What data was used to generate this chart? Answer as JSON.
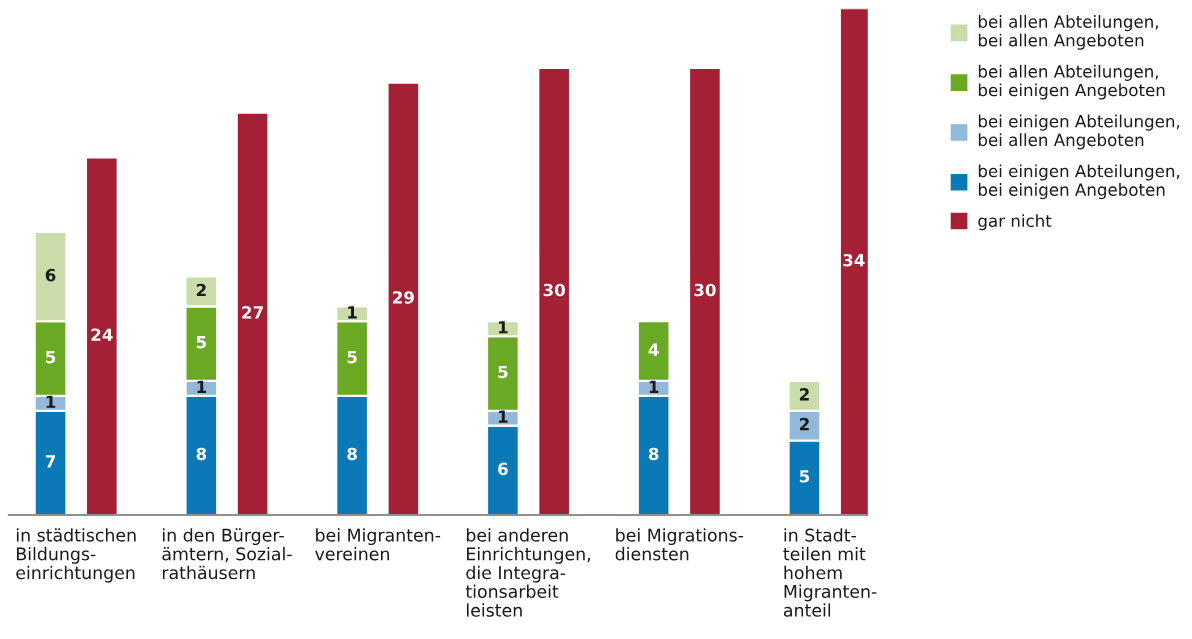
{
  "chart_data": {
    "type": "bar",
    "stacked": true,
    "data_labels": true,
    "legend": "top right",
    "tick_labels": "x",
    "categories": [
      "in städtischen\nBildungs-\neinrichtungen",
      "in den Bürger-\nämtern, Sozial-\nrathäusern",
      "bei Migranten-\nvereinen",
      "bei anderen\nEinrichtungen,\ndie Integra-\ntionsarbeit\nleisten",
      "bei Migrations-\ndiensten",
      "in Stadt-\nteilen mit\nhohem\nMigranten-\nanteil"
    ],
    "series": [
      {
        "name": "bei einigen Abteilungen,\nbei einigen Angeboten",
        "color": "#0a79b5",
        "values": [
          7,
          8,
          8,
          6,
          8,
          5
        ]
      },
      {
        "name": "bei einigen Abteilungen,\nbei allen Angeboten",
        "color": "#93b9d8",
        "values": [
          1,
          1,
          null,
          1,
          1,
          2
        ]
      },
      {
        "name": "bei allen Abteilungen,\nbei einigen Angeboten",
        "color": "#6aa923",
        "values": [
          5,
          5,
          5,
          5,
          4,
          null
        ]
      },
      {
        "name": "bei allen Abteilungen,\nbei allen Angeboten",
        "color": "#c9dcaa",
        "values": [
          6,
          2,
          1,
          1,
          null,
          2
        ]
      },
      {
        "name": "gar nicht",
        "color": "#a32035",
        "axis": "y2",
        "values": [
          24,
          27,
          29,
          30,
          30,
          34
        ]
      }
    ]
  }
}
